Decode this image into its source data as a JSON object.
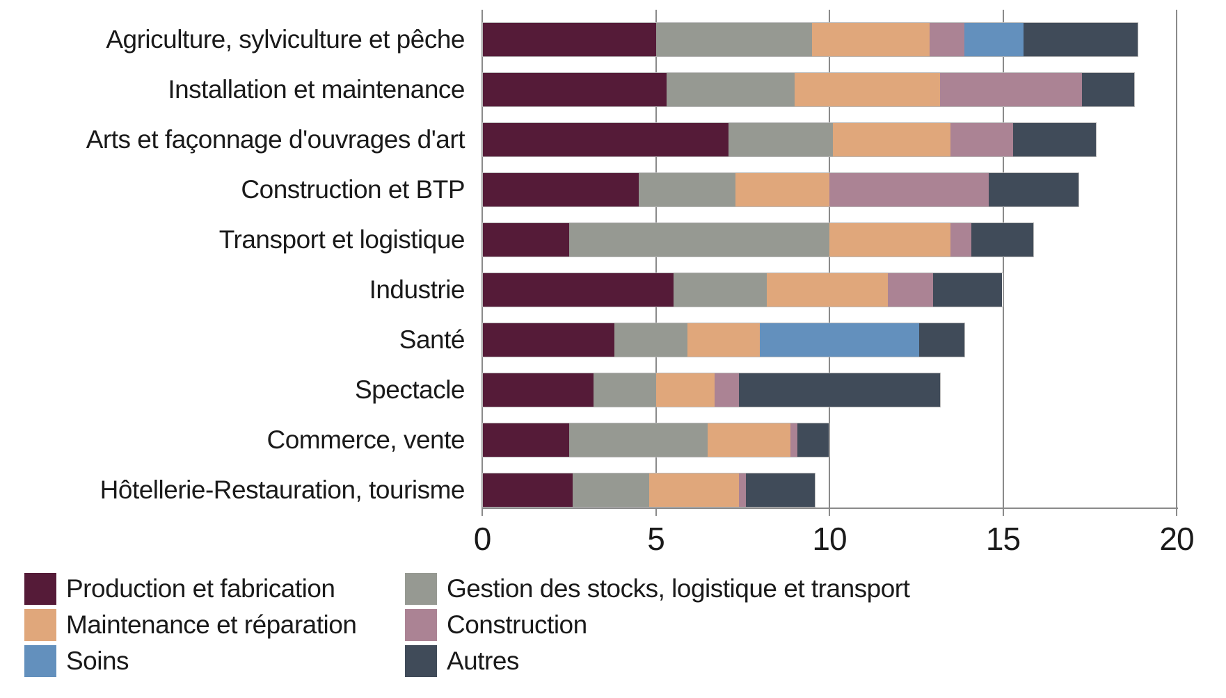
{
  "chart_data": {
    "type": "bar",
    "orientation": "horizontal-stacked",
    "title": "",
    "xlabel": "",
    "ylabel": "",
    "xlim": [
      0,
      20
    ],
    "xticks": [
      0,
      5,
      10,
      15,
      20
    ],
    "grid": "vertical",
    "categories": [
      "Agriculture, sylviculture et pêche",
      "Installation et maintenance",
      "Arts et façonnage d'ouvrages d'art",
      "Construction et BTP",
      "Transport et logistique",
      "Industrie",
      "Santé",
      "Spectacle",
      "Commerce, vente",
      "Hôtellerie-Restauration, tourisme"
    ],
    "series": [
      {
        "name": "Production et fabrication",
        "color": "#551b38",
        "values": [
          5.0,
          5.3,
          7.1,
          4.5,
          2.5,
          5.5,
          3.8,
          3.2,
          2.5,
          2.6
        ]
      },
      {
        "name": "Gestion des stocks, logistique et transport",
        "color": "#969992",
        "values": [
          4.5,
          3.7,
          3.0,
          2.8,
          7.5,
          2.7,
          2.1,
          1.8,
          4.0,
          2.2
        ]
      },
      {
        "name": "Maintenance et réparation",
        "color": "#e0a77b",
        "values": [
          3.4,
          4.2,
          3.4,
          2.7,
          3.5,
          3.5,
          2.1,
          1.7,
          2.4,
          2.6
        ]
      },
      {
        "name": "Construction",
        "color": "#ab8394",
        "values": [
          1.0,
          4.1,
          1.8,
          4.6,
          0.6,
          1.3,
          0.0,
          0.7,
          0.2,
          0.2
        ]
      },
      {
        "name": "Soins",
        "color": "#6390bd",
        "values": [
          1.7,
          0.0,
          0.0,
          0.0,
          0.0,
          0.0,
          4.6,
          0.0,
          0.0,
          0.0
        ]
      },
      {
        "name": "Autres",
        "color": "#404b59",
        "values": [
          3.3,
          1.5,
          2.4,
          2.6,
          1.8,
          2.0,
          1.3,
          5.8,
          0.9,
          2.0
        ]
      }
    ],
    "totals": [
      18.9,
      18.8,
      17.7,
      17.2,
      15.9,
      15.0,
      13.9,
      13.2,
      10.0,
      9.6
    ],
    "legend": {
      "position": "bottom",
      "columns": [
        [
          "Production et fabrication",
          "Maintenance et réparation",
          "Soins"
        ],
        [
          "Gestion des stocks, logistique et transport",
          "Construction",
          "Autres"
        ]
      ]
    },
    "colors": {
      "gridline": "#8a8a8a",
      "axis": "#8a8a8a",
      "text": "#1a1a1a",
      "bar_outline": "#b9b9b9",
      "background": "#ffffff"
    }
  }
}
